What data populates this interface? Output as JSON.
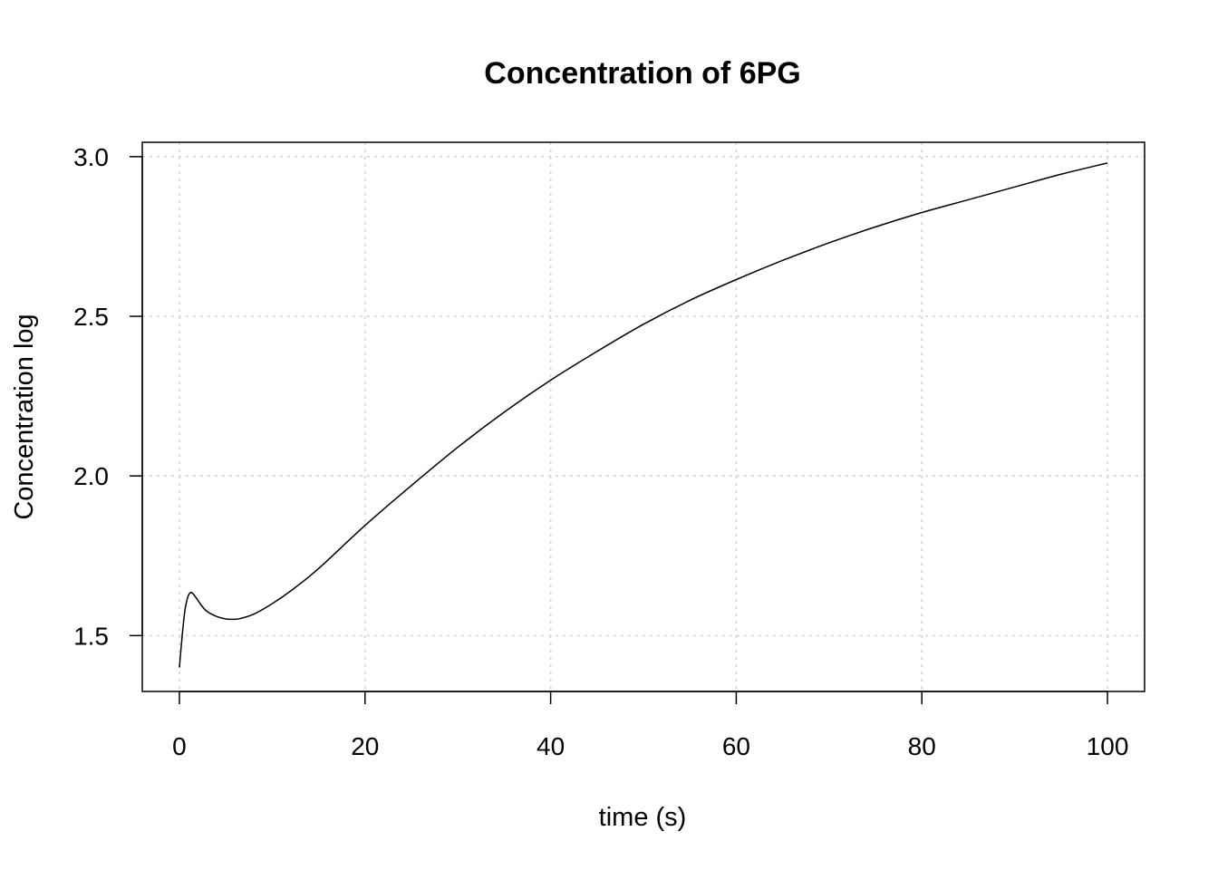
{
  "chart_data": {
    "type": "line",
    "title": "Concentration of 6PG",
    "xlabel": "time (s)",
    "ylabel": "Concentration log",
    "xlim": [
      -4,
      104
    ],
    "ylim": [
      1.325,
      3.045
    ],
    "x_ticks": [
      0,
      20,
      40,
      60,
      80,
      100
    ],
    "y_ticks": [
      1.5,
      2.0,
      2.5,
      3.0
    ],
    "x_tick_labels": [
      "0",
      "20",
      "40",
      "60",
      "80",
      "100"
    ],
    "y_tick_labels": [
      "1.5",
      "2.0",
      "2.5",
      "3.0"
    ],
    "grid": true,
    "series": [
      {
        "color": "#000000",
        "x": [
          0,
          0.3,
          0.6,
          0.9,
          1.2,
          1.5,
          2,
          2.5,
          3,
          4,
          5,
          5.7,
          6.5,
          8,
          10,
          12,
          15,
          20,
          25,
          30,
          35,
          40,
          45,
          50,
          55,
          60,
          65,
          70,
          75,
          80,
          85,
          90,
          95,
          100
        ],
        "y": [
          1.4,
          1.5,
          1.58,
          1.62,
          1.635,
          1.63,
          1.61,
          1.59,
          1.575,
          1.56,
          1.552,
          1.551,
          1.553,
          1.567,
          1.6,
          1.64,
          1.71,
          1.845,
          1.97,
          2.09,
          2.2,
          2.3,
          2.39,
          2.475,
          2.55,
          2.615,
          2.675,
          2.73,
          2.78,
          2.825,
          2.865,
          2.905,
          2.945,
          2.98
        ]
      }
    ]
  }
}
